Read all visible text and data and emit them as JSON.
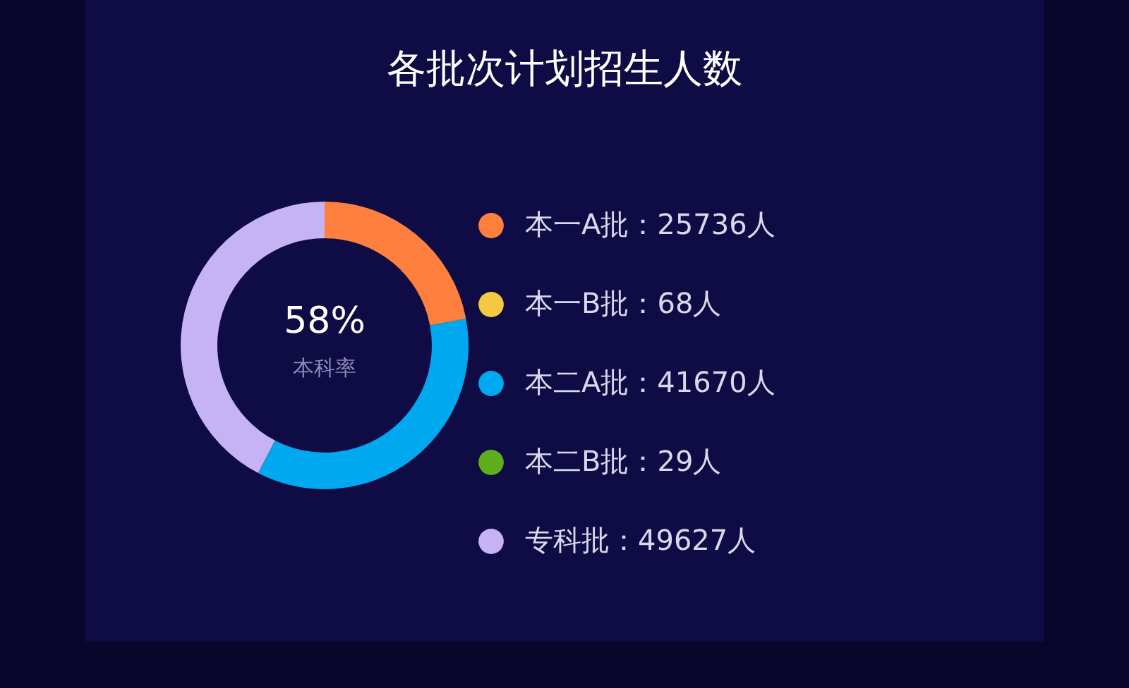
{
  "chart_data": {
    "type": "donut",
    "title": "各批次计划招生人数",
    "categories": [
      "本一A批：25736人",
      "本一B批：68人",
      "本二A批：41670人",
      "本二B批：29人",
      "专科批：49627人"
    ],
    "values": [
      25736,
      68,
      41670,
      29,
      49627
    ],
    "colors": [
      "#ff7f3f",
      "#f5c842",
      "#00a8f0",
      "#5fae1e",
      "#c6b3f5"
    ],
    "annotations": [
      "58%",
      "本科率"
    ],
    "legend": "right"
  }
}
